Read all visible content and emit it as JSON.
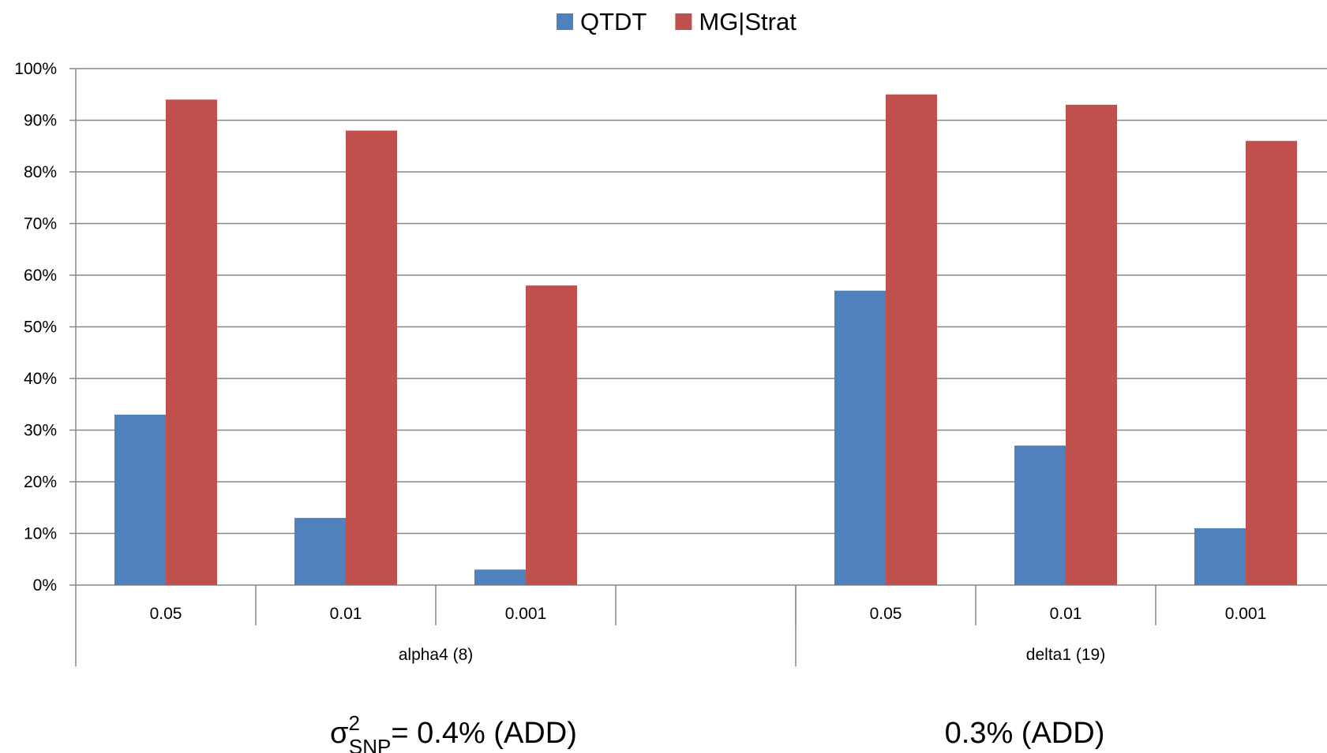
{
  "chart_data": {
    "type": "bar",
    "title": "",
    "xlabel": "",
    "ylabel": "",
    "ylim": [
      0,
      100
    ],
    "y_ticks": [
      "0%",
      "10%",
      "20%",
      "30%",
      "40%",
      "50%",
      "60%",
      "70%",
      "80%",
      "90%",
      "100%"
    ],
    "y_tick_values": [
      0,
      10,
      20,
      30,
      40,
      50,
      60,
      70,
      80,
      90,
      100
    ],
    "grid": true,
    "legend_position": "top-center",
    "categories": [
      "0.05",
      "0.01",
      "0.001",
      "",
      "0.05",
      "0.01",
      "0.001"
    ],
    "groups": [
      {
        "label": "alpha4 (8)",
        "span": [
          0,
          3
        ]
      },
      {
        "label": "delta1 (19)",
        "span": [
          4,
          6
        ]
      }
    ],
    "series": [
      {
        "name": "QTDT",
        "color": "#4F81BD",
        "values": [
          33,
          13,
          3,
          null,
          57,
          27,
          11
        ]
      },
      {
        "name": "MG|Strat",
        "color": "#C0504D",
        "values": [
          94,
          88,
          58,
          null,
          95,
          93,
          86
        ]
      }
    ]
  },
  "captions": {
    "left": {
      "symbol": "σ",
      "sup": "2",
      "sub": "SNP",
      "text": "= 0.4% (ADD)"
    },
    "right": {
      "text": "0.3% (ADD)"
    }
  }
}
